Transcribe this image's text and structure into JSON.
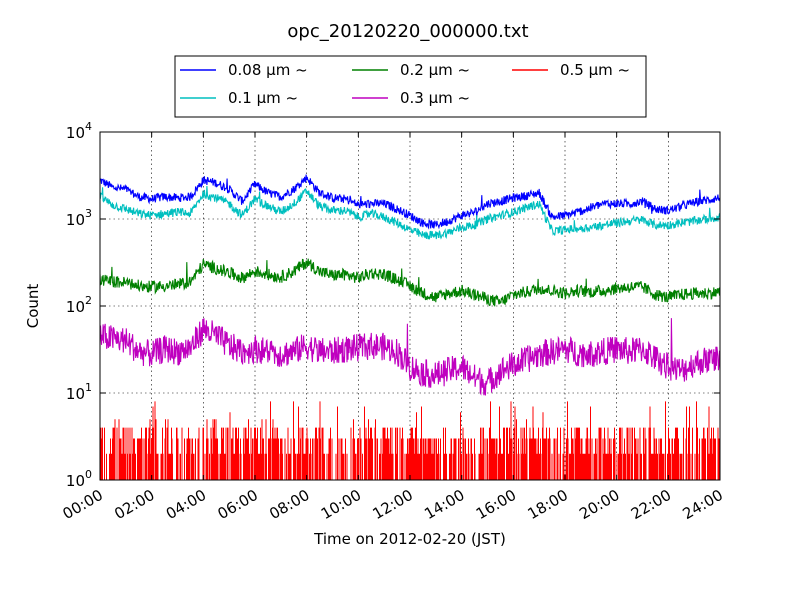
{
  "chart_data": {
    "type": "line",
    "title": "opc_20120220_000000.txt",
    "xlabel": "Time on 2012-02-20 (JST)",
    "ylabel": "Count",
    "yscale": "log",
    "ylim": [
      1,
      10000
    ],
    "xlim": [
      "00:00",
      "24:00"
    ],
    "grid": true,
    "legend_position": "top-center",
    "x_ticks": [
      "00:00",
      "02:00",
      "04:00",
      "06:00",
      "08:00",
      "10:00",
      "12:00",
      "14:00",
      "16:00",
      "18:00",
      "20:00",
      "22:00",
      "24:00"
    ],
    "y_ticks": [
      {
        "base": "10",
        "exp": "0"
      },
      {
        "base": "10",
        "exp": "1"
      },
      {
        "base": "10",
        "exp": "2"
      },
      {
        "base": "10",
        "exp": "3"
      },
      {
        "base": "10",
        "exp": "4"
      }
    ],
    "x_hours": [
      0,
      0.5,
      1,
      1.5,
      2,
      2.5,
      3,
      3.5,
      4,
      4.5,
      5,
      5.5,
      6,
      6.5,
      7,
      7.5,
      8,
      8.5,
      9,
      9.5,
      10,
      10.5,
      11,
      11.5,
      12,
      12.5,
      13,
      13.5,
      14,
      14.5,
      15,
      15.5,
      16,
      16.5,
      17,
      17.5,
      18,
      18.5,
      19,
      19.5,
      20,
      20.5,
      21,
      21.5,
      22,
      22.5,
      23,
      23.5,
      24
    ],
    "series": [
      {
        "name": "0.08 μm ~",
        "color": "#0000ff",
        "values": [
          2800,
          2300,
          2200,
          1800,
          1700,
          1800,
          1750,
          1800,
          2800,
          2600,
          2200,
          1600,
          2500,
          2000,
          1800,
          2200,
          3000,
          2000,
          1750,
          1700,
          1450,
          1500,
          1500,
          1300,
          1100,
          900,
          850,
          950,
          1100,
          1200,
          1500,
          1600,
          1750,
          1850,
          2000,
          1050,
          1100,
          1200,
          1350,
          1500,
          1500,
          1500,
          1600,
          1300,
          1250,
          1400,
          1550,
          1650,
          1750
        ]
      },
      {
        "name": "0.1 μm ~",
        "color": "#00bfbf",
        "values": [
          1800,
          1450,
          1300,
          1150,
          1100,
          1150,
          1200,
          1150,
          1950,
          1750,
          1500,
          1100,
          1700,
          1400,
          1200,
          1500,
          2100,
          1400,
          1250,
          1250,
          1050,
          1150,
          1050,
          900,
          750,
          650,
          650,
          700,
          800,
          850,
          1000,
          1100,
          1200,
          1350,
          1500,
          720,
          750,
          780,
          800,
          850,
          900,
          950,
          980,
          850,
          850,
          900,
          950,
          1000,
          1050
        ]
      },
      {
        "name": "0.2 μm ~",
        "color": "#008000",
        "values": [
          200,
          190,
          185,
          170,
          165,
          170,
          175,
          190,
          300,
          270,
          240,
          210,
          250,
          230,
          215,
          250,
          320,
          250,
          225,
          230,
          210,
          240,
          230,
          200,
          170,
          140,
          125,
          140,
          150,
          135,
          120,
          110,
          135,
          145,
          160,
          150,
          140,
          150,
          145,
          150,
          160,
          165,
          165,
          135,
          125,
          135,
          140,
          140,
          145
        ]
      },
      {
        "name": "0.3 μm ~",
        "color": "#bf00bf",
        "values": [
          45,
          42,
          40,
          30,
          28,
          32,
          30,
          33,
          55,
          45,
          35,
          30,
          32,
          30,
          28,
          30,
          35,
          30,
          30,
          32,
          33,
          35,
          34,
          30,
          20,
          17,
          16,
          18,
          20,
          15,
          13,
          18,
          21,
          24,
          28,
          30,
          32,
          29,
          28,
          30,
          32,
          30,
          32,
          25,
          20,
          18,
          22,
          24,
          25
        ]
      },
      {
        "name": "0.5 μm ~",
        "color": "#ff0000",
        "values": [
          3,
          3,
          2,
          2,
          3,
          3,
          2,
          2,
          3,
          3,
          2,
          2,
          2,
          3,
          2,
          2,
          2,
          2,
          2,
          2,
          2,
          2,
          2,
          2,
          2,
          2,
          1.5,
          2,
          2,
          2,
          2,
          2,
          2,
          2,
          2,
          2,
          2,
          2,
          2,
          2,
          2,
          2,
          2,
          2,
          2,
          2,
          2,
          2,
          2
        ]
      }
    ]
  }
}
